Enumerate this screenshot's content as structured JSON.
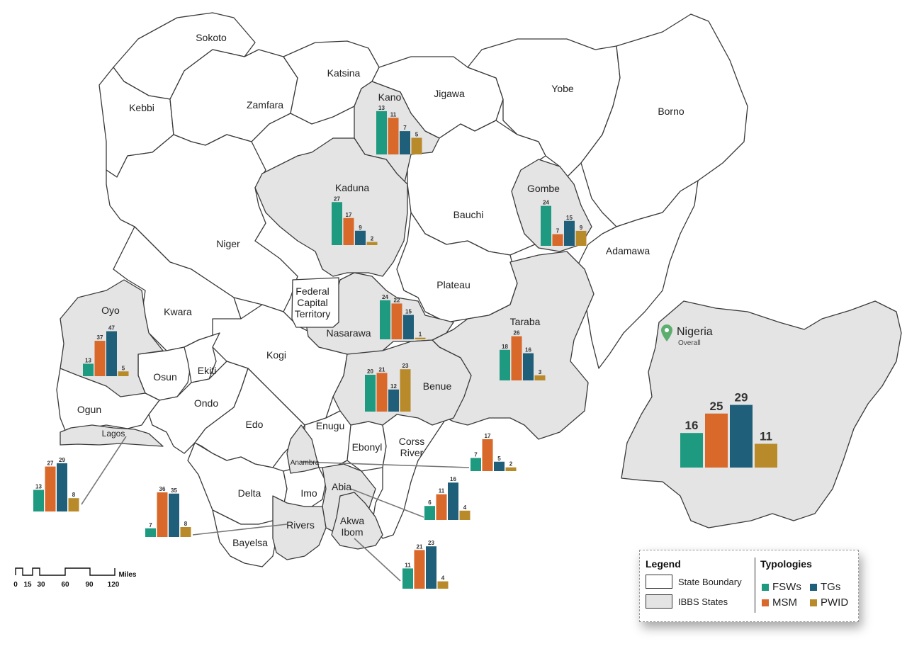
{
  "legend": {
    "title": "Legend",
    "state_boundary": "State Boundary",
    "ibbs_states": "IBBS States",
    "typologies_title": "Typologies"
  },
  "typologies": [
    {
      "key": "fsw",
      "label": "FSWs",
      "color": "#1e9a80"
    },
    {
      "key": "tg",
      "label": "TGs",
      "color": "#1f5f7a"
    },
    {
      "key": "msm",
      "label": "MSM",
      "color": "#d9692b"
    },
    {
      "key": "pwid",
      "label": "PWID",
      "color": "#b98a2a"
    }
  ],
  "state_labels": {
    "sokoto": "Sokoto",
    "katsina": "Katsina",
    "kebbi": "Kebbi",
    "zamfara": "Zamfara",
    "kano": "Kano",
    "jigawa": "Jigawa",
    "yobe": "Yobe",
    "borno": "Borno",
    "kaduna": "Kaduna",
    "gombe": "Gombe",
    "bauchi": "Bauchi",
    "niger": "Niger",
    "adamawa": "Adamawa",
    "plateau": "Plateau",
    "fct1": "Federal",
    "fct2": "Capital",
    "fct3": "Territory",
    "oyo": "Oyo",
    "kwara": "Kwara",
    "nasarawa": "Nasarawa",
    "taraba": "Taraba",
    "kogi": "Kogi",
    "osun": "Osun",
    "ekiti": "Ekiti",
    "benue": "Benue",
    "ogun": "Ogun",
    "ondo": "Ondo",
    "edo": "Edo",
    "lagos": "Lagos",
    "enugu": "Enugu",
    "ebonyi": "Ebonyl",
    "cross1": "Corss",
    "cross2": "River",
    "anambra": "Anambra",
    "delta": "Delta",
    "imo": "Imo",
    "abia": "Abia",
    "akwa1": "Akwa",
    "akwa2": "Ibom",
    "rivers": "Rivers",
    "bayelsa": "Bayelsa"
  },
  "inset": {
    "country": "Nigeria",
    "subtitle": "Overall"
  },
  "scale_bar": {
    "ticks": [
      "0",
      "15",
      "30",
      "60",
      "90",
      "120"
    ],
    "unit": "Miles"
  },
  "chart_data": [
    {
      "type": "bar",
      "state": "Kano",
      "series": [
        "FSWs",
        "MSM",
        "TGs",
        "PWID"
      ],
      "values": [
        13,
        11,
        7,
        5
      ]
    },
    {
      "type": "bar",
      "state": "Kaduna",
      "series": [
        "FSWs",
        "MSM",
        "TGs",
        "PWID"
      ],
      "values": [
        27,
        17,
        9,
        2
      ]
    },
    {
      "type": "bar",
      "state": "Gombe",
      "series": [
        "FSWs",
        "MSM",
        "TGs",
        "PWID"
      ],
      "values": [
        24,
        7,
        15,
        9
      ]
    },
    {
      "type": "bar",
      "state": "Oyo",
      "series": [
        "FSWs",
        "MSM",
        "TGs",
        "PWID"
      ],
      "values": [
        13,
        37,
        47,
        5
      ]
    },
    {
      "type": "bar",
      "state": "Nasarawa",
      "series": [
        "FSWs",
        "MSM",
        "TGs",
        "PWID"
      ],
      "values": [
        24,
        22,
        15,
        1
      ]
    },
    {
      "type": "bar",
      "state": "Taraba",
      "series": [
        "FSWs",
        "MSM",
        "TGs",
        "PWID"
      ],
      "values": [
        18,
        26,
        16,
        3
      ]
    },
    {
      "type": "bar",
      "state": "Benue",
      "series": [
        "FSWs",
        "MSM",
        "TGs",
        "PWID"
      ],
      "values": [
        20,
        21,
        12,
        23
      ]
    },
    {
      "type": "bar",
      "state": "Lagos",
      "series": [
        "FSWs",
        "MSM",
        "TGs",
        "PWID"
      ],
      "values": [
        13,
        27,
        29,
        8
      ]
    },
    {
      "type": "bar",
      "state": "Anambra",
      "series": [
        "FSWs",
        "MSM",
        "TGs",
        "PWID"
      ],
      "values": [
        7,
        17,
        5,
        2
      ]
    },
    {
      "type": "bar",
      "state": "Abia",
      "series": [
        "FSWs",
        "MSM",
        "TGs",
        "PWID"
      ],
      "values": [
        6,
        11,
        16,
        4
      ]
    },
    {
      "type": "bar",
      "state": "Rivers",
      "series": [
        "FSWs",
        "MSM",
        "TGs",
        "PWID"
      ],
      "values": [
        7,
        36,
        35,
        8
      ]
    },
    {
      "type": "bar",
      "state": "Akwa Ibom",
      "series": [
        "FSWs",
        "MSM",
        "TGs",
        "PWID"
      ],
      "values": [
        11,
        21,
        23,
        4
      ]
    },
    {
      "type": "bar",
      "state": "Nigeria",
      "series": [
        "FSWs",
        "MSM",
        "TGs",
        "PWID"
      ],
      "values": [
        16,
        25,
        29,
        11
      ]
    }
  ]
}
